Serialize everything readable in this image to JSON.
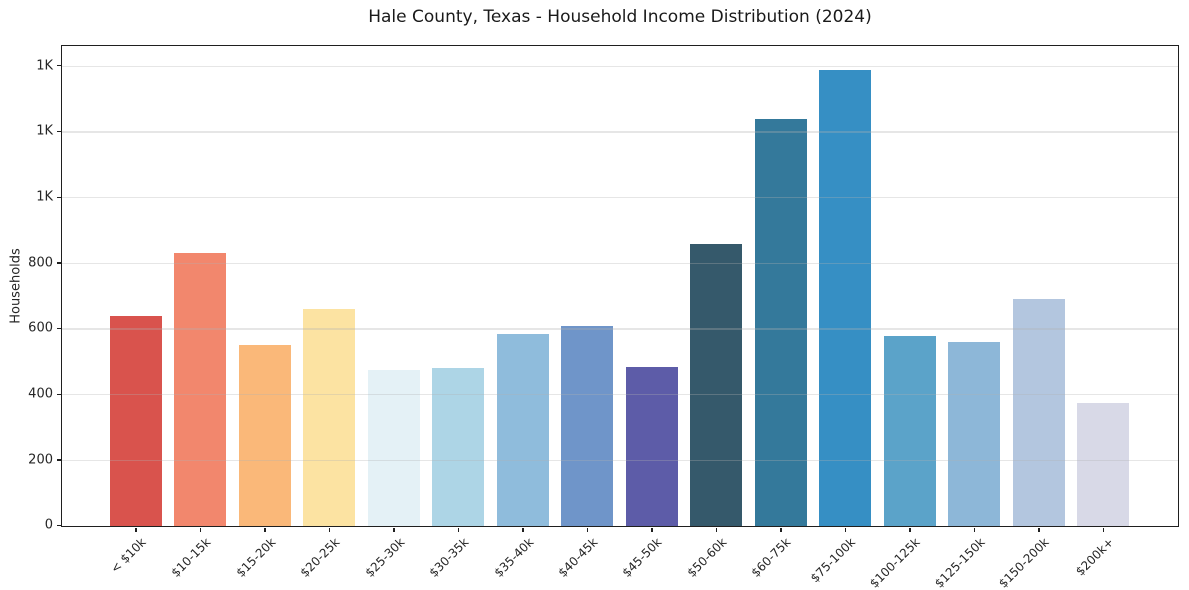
{
  "title": "Hale County, Texas - Household Income Distribution (2024)",
  "chart_data": {
    "type": "bar",
    "title": "Hale County, Texas - Household Income Distribution (2024)",
    "xlabel": "",
    "ylabel": "Households",
    "categories": [
      "< $10k",
      "$10-15k",
      "$15-20k",
      "$20-25k",
      "$25-30k",
      "$30-35k",
      "$35-40k",
      "$40-45k",
      "$45-50k",
      "$50-60k",
      "$60-75k",
      "$75-100k",
      "$100-125k",
      "$125-150k",
      "$150-200k",
      "$200k+"
    ],
    "values": [
      640,
      830,
      550,
      660,
      475,
      480,
      585,
      610,
      485,
      860,
      1240,
      1390,
      580,
      560,
      690,
      375
    ],
    "bar_colors": [
      "#d9534d",
      "#f2876d",
      "#fab879",
      "#fce3a2",
      "#e4f1f6",
      "#add5e6",
      "#8fbcdc",
      "#6f95c9",
      "#5d5ca8",
      "#35596b",
      "#34799b",
      "#368fc4",
      "#5ba3c9",
      "#8db7d8",
      "#b3c6df",
      "#d8d9e7"
    ],
    "ylim": [
      0,
      1460
    ],
    "yticks": [
      {
        "value": 0,
        "label": "0"
      },
      {
        "value": 200,
        "label": "200"
      },
      {
        "value": 400,
        "label": "400"
      },
      {
        "value": 600,
        "label": "600"
      },
      {
        "value": 800,
        "label": "800"
      },
      {
        "value": 1000,
        "label": "1K"
      },
      {
        "value": 1200,
        "label": "1K"
      },
      {
        "value": 1400,
        "label": "1K"
      }
    ],
    "grid": "horizontal",
    "legend": "none",
    "colors": {
      "background": "#ffffff",
      "grid": "#e7e7e7",
      "spine": "#1f1f1f",
      "text": "#262626"
    }
  }
}
